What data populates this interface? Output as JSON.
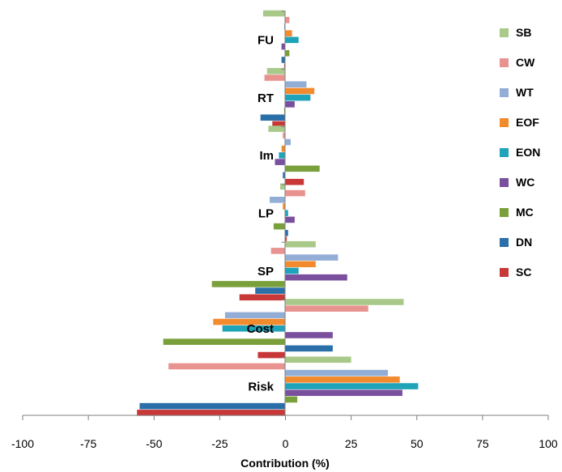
{
  "chart_data": {
    "type": "bar",
    "orientation": "horizontal",
    "title": "",
    "xlabel": "Contribution (%)",
    "ylabel": "",
    "xlim": [
      -100,
      100
    ],
    "xticks": [
      "-100",
      "-75",
      "-50",
      "-25",
      "0",
      "25",
      "50",
      "75",
      "100"
    ],
    "grid": false,
    "legend_position": "right",
    "categories": [
      "FU",
      "RT",
      "Im",
      "LP",
      "SP",
      "Cost",
      "Risk"
    ],
    "series": [
      {
        "name": "SB",
        "color": "#a9c98a",
        "values": [
          -8.5,
          -7,
          -6.5,
          -2,
          11.5,
          45,
          25
        ]
      },
      {
        "name": "CW",
        "color": "#e8938f",
        "values": [
          1.5,
          -8,
          -1,
          7.5,
          -5.5,
          31.5,
          -44.5
        ]
      },
      {
        "name": "WT",
        "color": "#93aed6",
        "values": [
          -0.5,
          8,
          2,
          -6,
          20,
          -23,
          39
        ]
      },
      {
        "name": "EOF",
        "color": "#f28a2e",
        "values": [
          2.5,
          11,
          -1.5,
          -1,
          11.5,
          -27.5,
          43.5
        ]
      },
      {
        "name": "EON",
        "color": "#1fa3b8",
        "values": [
          5,
          9.5,
          -2.5,
          1,
          5,
          -24,
          50.5
        ]
      },
      {
        "name": "WC",
        "color": "#7a4f9e",
        "values": [
          -1.5,
          3.5,
          -4,
          3.5,
          23.5,
          18,
          44.5
        ]
      },
      {
        "name": "MC",
        "color": "#7aa03c",
        "values": [
          1.5,
          -0.5,
          13,
          -4.5,
          -28,
          -46.5,
          4.5
        ]
      },
      {
        "name": "DN",
        "color": "#2a6fa8",
        "values": [
          -1.5,
          -9.5,
          -1,
          1,
          -11.5,
          18,
          -55.5
        ]
      },
      {
        "name": "SC",
        "color": "#c83838",
        "values": [
          -0.5,
          -5,
          7,
          0.5,
          -17.5,
          -10.5,
          -56.5
        ]
      }
    ]
  }
}
